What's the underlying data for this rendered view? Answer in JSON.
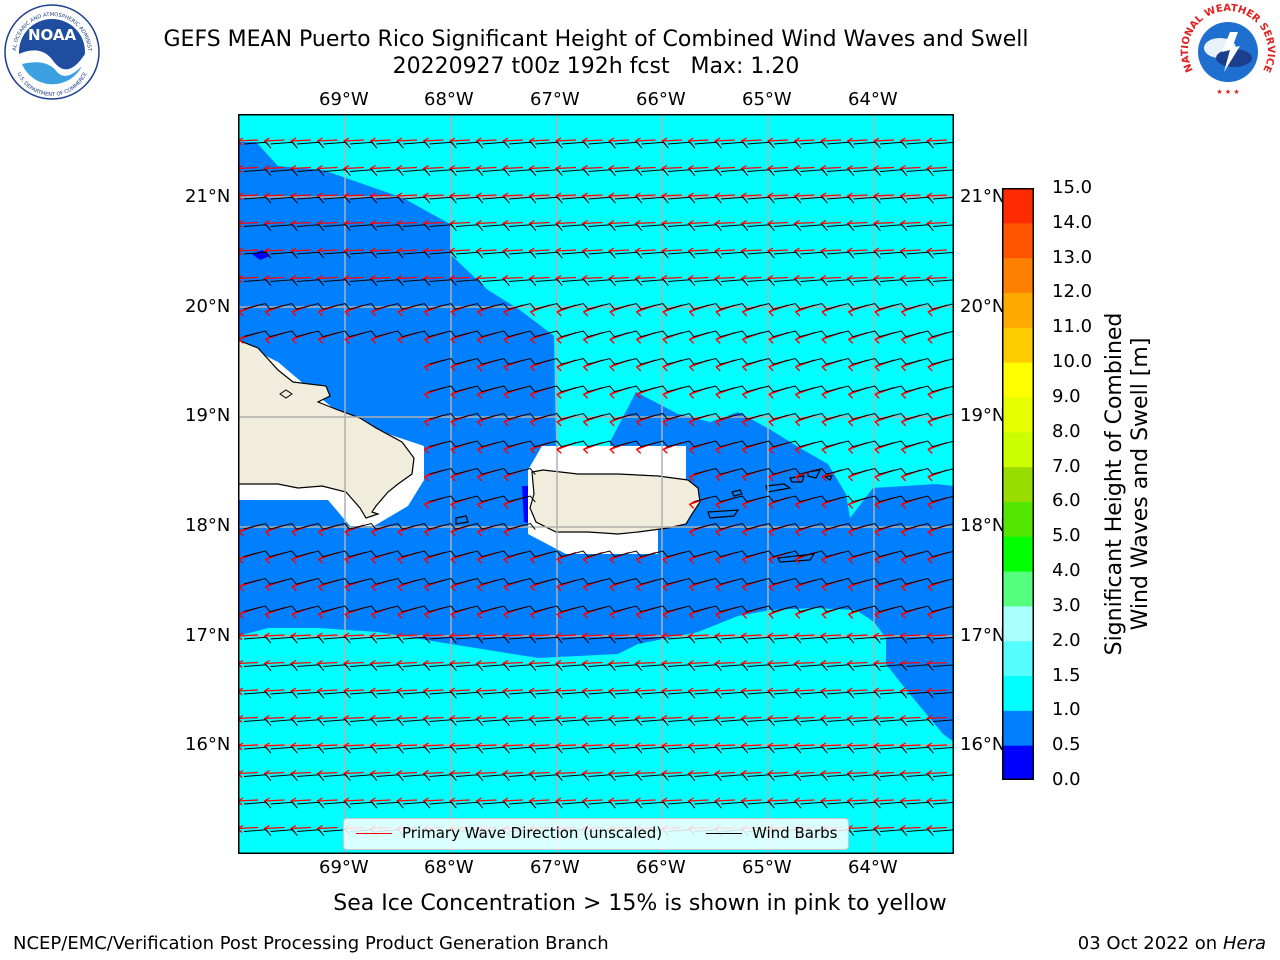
{
  "title": {
    "line1": "GEFS MEAN Puerto Rico Significant Height of Combined Wind Waves and Swell",
    "line2": "20220927 t00z 192h fcst   Max: 1.20"
  },
  "map": {
    "lon_labels": [
      "69°W",
      "68°W",
      "67°W",
      "66°W",
      "65°W",
      "64°W"
    ],
    "lat_labels": [
      "21°N",
      "20°N",
      "19°N",
      "18°N",
      "17°N",
      "16°N"
    ],
    "colors": {
      "cyan": "#00ffff",
      "blue": "#0080ff",
      "deep_blue": "#0000ff",
      "land": "#f0eddc",
      "mask": "#ffffff",
      "grid": "#b0b0b0",
      "wave_direction": "#ff0000",
      "wind_barb": "#000000"
    }
  },
  "colorbar": {
    "ticks": [
      "15.0",
      "14.0",
      "13.0",
      "12.0",
      "11.0",
      "10.0",
      "9.0",
      "8.0",
      "7.0",
      "6.0",
      "5.0",
      "4.0",
      "3.0",
      "2.0",
      "1.5",
      "1.0",
      "0.5",
      "0.0"
    ],
    "colors": [
      "#0000ff",
      "#0080ff",
      "#00ffff",
      "#55ffff",
      "#aaffff",
      "#55ff80",
      "#00ff00",
      "#55e600",
      "#99dd00",
      "#ccff00",
      "#e6ff00",
      "#ffff00",
      "#ffcc00",
      "#ffaa00",
      "#ff8000",
      "#ff5500",
      "#ff2a00",
      "#ff0000"
    ],
    "label_line1": "Significant Height of Combined",
    "label_line2": "Wind Waves and Swell [m]"
  },
  "legend": {
    "wave_direction": "Primary Wave Direction (unscaled)",
    "wind_barbs": "Wind Barbs"
  },
  "sea_ice_note": "Sea Ice Concentration > 15% is shown in pink to yellow",
  "footer": {
    "left": "NCEP/EMC/Verification Post Processing Product Generation Branch",
    "date": "03 Oct 2022",
    "on": "on",
    "machine": "Hera"
  },
  "logos": {
    "noaa_text": "NOAA",
    "noaa_ring": "NATIONAL OCEANIC AND ATMOSPHERIC ADMINISTRATION",
    "noaa_ring_bottom": "U.S. DEPARTMENT OF COMMERCE",
    "nws_ring": "NATIONAL WEATHER SERVICE"
  }
}
